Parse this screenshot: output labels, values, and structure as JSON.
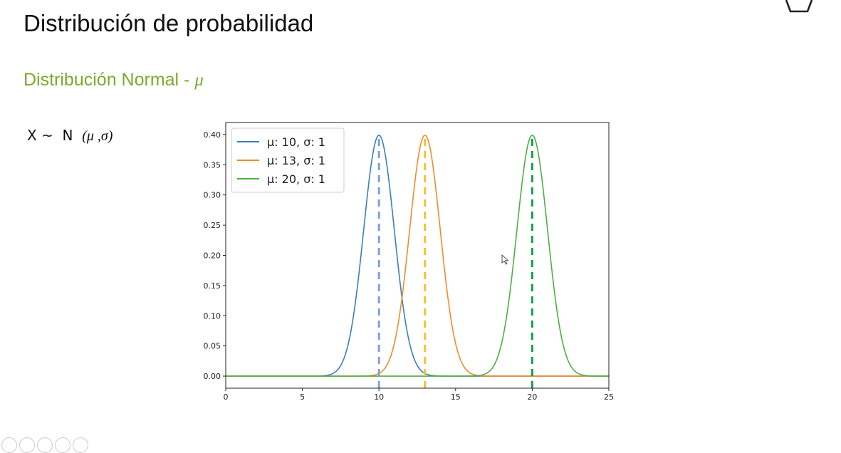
{
  "slide": {
    "title": "Distribución de probabilidad",
    "subtitle_text": "Distribución Normal - ",
    "subtitle_symbol": "μ",
    "subtitle_color": "#7aab2d",
    "formula_prefix": "X ~  N  ",
    "formula_params": "(μ ,σ)"
  },
  "icons": {
    "corner": "hexagon-outline-icon",
    "toolbar": [
      "pen-icon",
      "pointer-icon",
      "search-icon",
      "slides-icon",
      "more-icon"
    ]
  },
  "chart_data": {
    "type": "line",
    "xlim": [
      0,
      25
    ],
    "ylim": [
      -0.02,
      0.42
    ],
    "x_ticks": [
      0,
      5,
      10,
      15,
      20,
      25
    ],
    "y_ticks": [
      0.0,
      0.05,
      0.1,
      0.15,
      0.2,
      0.25,
      0.3,
      0.35,
      0.4
    ],
    "x_tick_labels": [
      "0",
      "5",
      "10",
      "15",
      "20",
      "25"
    ],
    "y_tick_labels": [
      "0.00",
      "0.05",
      "0.10",
      "0.15",
      "0.20",
      "0.25",
      "0.30",
      "0.35",
      "0.40"
    ],
    "legend_position": "top-left",
    "grid": false,
    "series": [
      {
        "name": "μ: 10, σ: 1",
        "mu": 10,
        "sigma": 1,
        "color": "#3a7ebf",
        "mean_line_color": "#7f9fd6"
      },
      {
        "name": "μ: 13, σ: 1",
        "mu": 13,
        "sigma": 1,
        "color": "#f58a2a",
        "mean_line_color": "#f1c232"
      },
      {
        "name": "μ: 20, σ: 1",
        "mu": 20,
        "sigma": 1,
        "color": "#4fae45",
        "mean_line_color": "#13a04b"
      }
    ]
  }
}
